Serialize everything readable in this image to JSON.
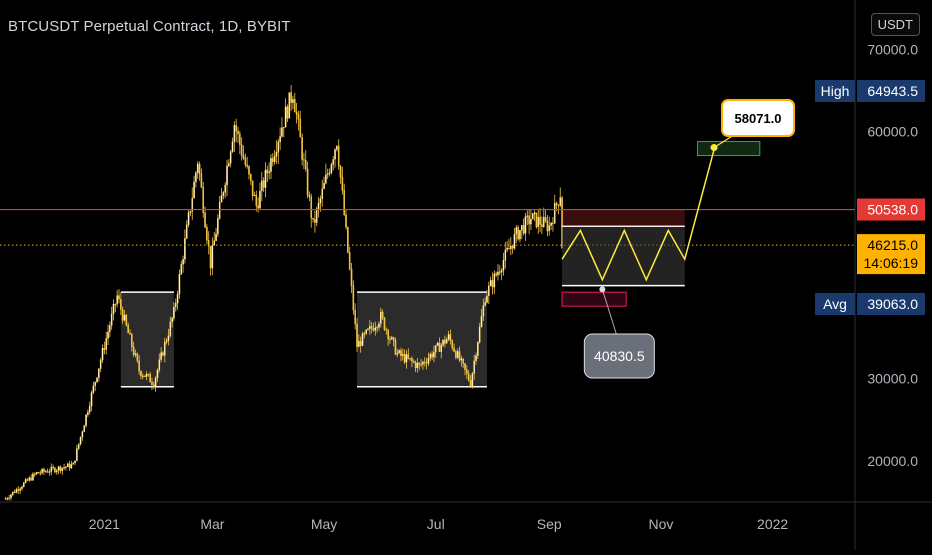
{
  "header": {
    "title": "BTCUSDT Perpetual Contract, 1D, BYBIT",
    "currency": "USDT"
  },
  "colors": {
    "background": "#000000",
    "candle": "#f5c542",
    "price_line_red": "#e53935",
    "current_line": "#ffb300",
    "high_label_bg": "#1a3a6e",
    "zone_fill": "#3a3a3a",
    "zigzag": "#ffeb3b",
    "target_zone_border": "#43a047",
    "stop_zone_border": "#e91e63",
    "note_bubble": "#6b6f7a"
  },
  "chart_data": {
    "type": "candlestick",
    "ylim": [
      15000,
      76000
    ],
    "y_ticks": [
      {
        "value": 70000,
        "label": "70000.0"
      },
      {
        "value": 60000,
        "label": "60000.0"
      },
      {
        "value": 30000,
        "label": "30000.0"
      },
      {
        "value": 20000,
        "label": "20000.0"
      }
    ],
    "x_ticks": [
      {
        "date": "2021-01-01",
        "label": "2021"
      },
      {
        "date": "2021-03-01",
        "label": "Mar"
      },
      {
        "date": "2021-05-01",
        "label": "May"
      },
      {
        "date": "2021-07-01",
        "label": "Jul"
      },
      {
        "date": "2021-09-01",
        "label": "Sep"
      },
      {
        "date": "2021-11-01",
        "label": "Nov"
      },
      {
        "date": "2022-01-01",
        "label": "2022"
      }
    ],
    "x_range": [
      "2020-11-05",
      "2022-02-15"
    ],
    "price_path": [
      [
        "2020-11-08",
        15400
      ],
      [
        "2020-11-25",
        18500
      ],
      [
        "2020-12-15",
        19500
      ],
      [
        "2021-01-08",
        40000
      ],
      [
        "2021-01-20",
        31000
      ],
      [
        "2021-01-28",
        29500
      ],
      [
        "2021-02-08",
        38000
      ],
      [
        "2021-02-15",
        48000
      ],
      [
        "2021-02-21",
        56500
      ],
      [
        "2021-02-28",
        44000
      ],
      [
        "2021-03-13",
        61000
      ],
      [
        "2021-03-25",
        51000
      ],
      [
        "2021-04-14",
        64900
      ],
      [
        "2021-04-25",
        48500
      ],
      [
        "2021-05-08",
        59000
      ],
      [
        "2021-05-19",
        34000
      ],
      [
        "2021-06-01",
        37500
      ],
      [
        "2021-06-10",
        33000
      ],
      [
        "2021-06-22",
        31500
      ],
      [
        "2021-07-08",
        35000
      ],
      [
        "2021-07-20",
        29500
      ],
      [
        "2021-07-28",
        40000
      ],
      [
        "2021-08-14",
        47500
      ],
      [
        "2021-08-22",
        49500
      ],
      [
        "2021-09-01",
        48500
      ],
      [
        "2021-09-07",
        52500
      ],
      [
        "2021-09-08",
        46200
      ]
    ],
    "price_lines": [
      {
        "name": "resistance",
        "value": 50538
      },
      {
        "name": "current",
        "value": 46215
      }
    ],
    "axis_labels": {
      "high": {
        "tag": "High",
        "value": "64943.5",
        "price": 64943.5
      },
      "resistance": {
        "value": "50538.0",
        "price": 50538
      },
      "current": {
        "value": "46215.0",
        "countdown": "14:06:19",
        "price": 46215
      },
      "avg": {
        "tag": "Avg",
        "value": "39063.0",
        "price": 39063
      }
    },
    "consolidation_zones": [
      {
        "start": "2021-01-10",
        "end": "2021-02-08",
        "top": 40500,
        "bottom": 29000
      },
      {
        "start": "2021-05-19",
        "end": "2021-07-29",
        "top": 40500,
        "bottom": 29000
      }
    ],
    "projection": {
      "range_start": "2021-09-08",
      "range_end": "2021-11-14",
      "range_top": 48500,
      "range_bottom": 41300,
      "zigzag": [
        [
          "2021-09-08",
          44500
        ],
        [
          "2021-09-18",
          48000
        ],
        [
          "2021-09-30",
          42000
        ],
        [
          "2021-10-12",
          48000
        ],
        [
          "2021-10-24",
          42000
        ],
        [
          "2021-11-05",
          48000
        ],
        [
          "2021-11-14",
          44500
        ],
        [
          "2021-11-30",
          57800
        ]
      ],
      "target_zone": {
        "start": "2021-11-21",
        "end": "2021-12-25",
        "top": 58800,
        "bottom": 57100
      },
      "stop_zone": {
        "start": "2021-09-08",
        "end": "2021-10-13",
        "top": 40500,
        "bottom": 38800
      }
    },
    "annotations": [
      {
        "label": "58071.0",
        "price": 58071,
        "date": "2021-11-30"
      },
      {
        "label": "40830.5",
        "price": 40830.5,
        "date": "2021-09-30"
      }
    ]
  }
}
